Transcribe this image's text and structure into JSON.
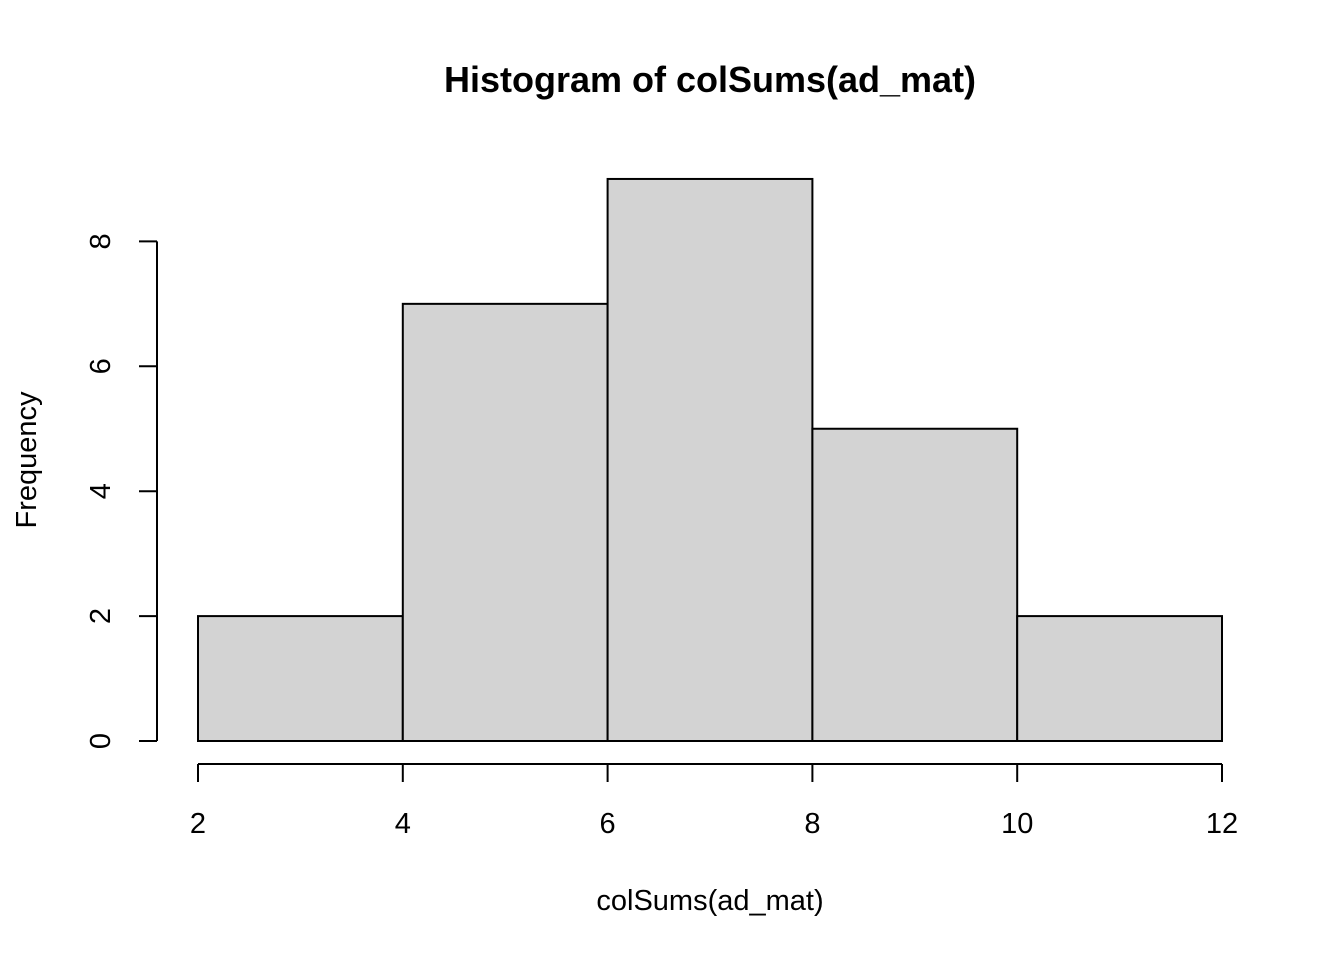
{
  "chart_data": {
    "type": "bar",
    "title": "Histogram of colSums(ad_mat)",
    "xlabel": "colSums(ad_mat)",
    "ylabel": "Frequency",
    "bins": [
      {
        "start": 2,
        "end": 4,
        "count": 2
      },
      {
        "start": 4,
        "end": 6,
        "count": 7
      },
      {
        "start": 6,
        "end": 8,
        "count": 9
      },
      {
        "start": 8,
        "end": 10,
        "count": 5
      },
      {
        "start": 10,
        "end": 12,
        "count": 2
      }
    ],
    "x_ticks": [
      {
        "value": 2,
        "label": "2"
      },
      {
        "value": 4,
        "label": "4"
      },
      {
        "value": 6,
        "label": "6"
      },
      {
        "value": 8,
        "label": "8"
      },
      {
        "value": 10,
        "label": "10"
      },
      {
        "value": 12,
        "label": "12"
      }
    ],
    "y_ticks": [
      {
        "value": 0,
        "label": "0"
      },
      {
        "value": 2,
        "label": "2"
      },
      {
        "value": 4,
        "label": "4"
      },
      {
        "value": 6,
        "label": "6"
      },
      {
        "value": 8,
        "label": "8"
      }
    ],
    "xlim": [
      2,
      12
    ],
    "ylim": [
      0,
      9
    ],
    "grid": false,
    "legend": "none",
    "colors": {
      "bar_fill": "#d3d3d3",
      "bar_stroke": "#000000"
    }
  }
}
